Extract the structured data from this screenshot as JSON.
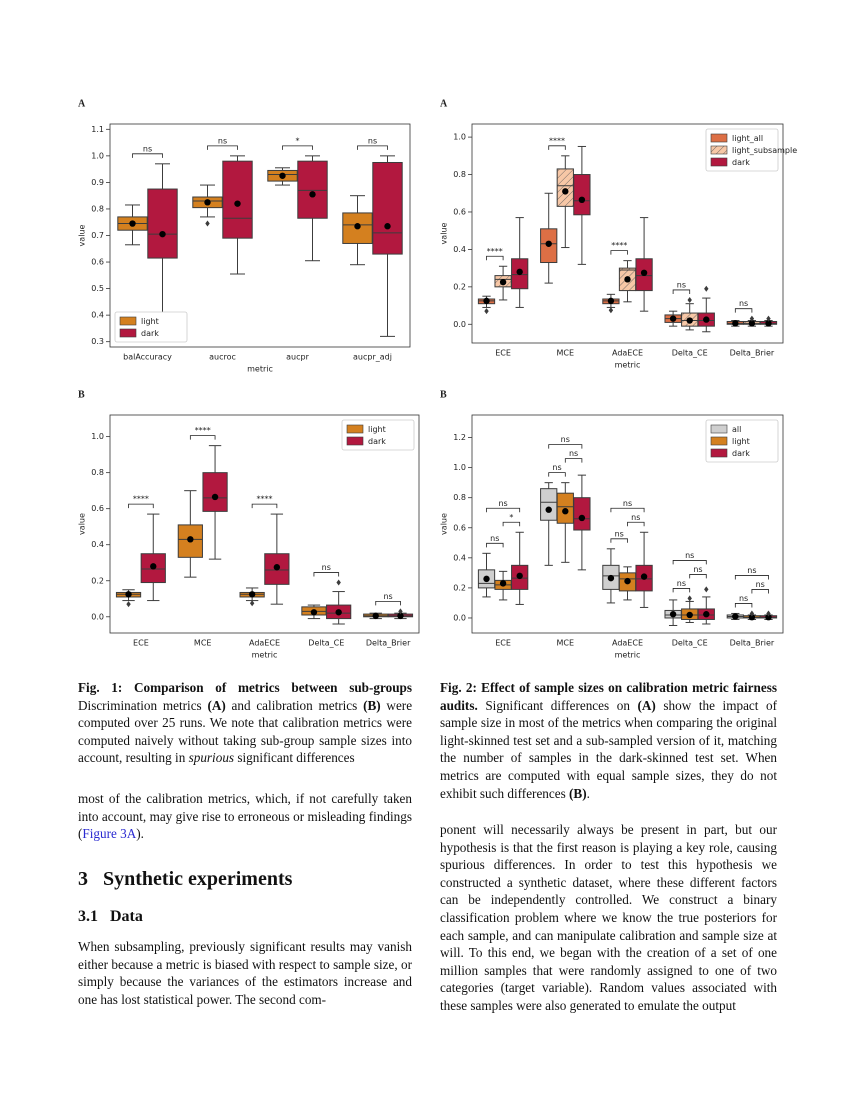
{
  "chart_data": [
    {
      "type": "box",
      "panel": "A",
      "categories": [
        "balAccuracy",
        "aucroc",
        "aucpr",
        "aucpr_adj"
      ],
      "xlabel": "metric",
      "ylabel": "value",
      "ylim": [
        0.28,
        1.12
      ],
      "yticks": [
        0.3,
        0.4,
        0.5,
        0.6,
        0.7,
        0.8,
        0.9,
        {
          "value": 1,
          "label": "1.0"
        },
        1.1
      ],
      "legend": "lower left",
      "series": [
        {
          "name": "light",
          "color": "#d4801f",
          "values": [
            {
              "min": 0.665,
              "q1": 0.72,
              "median": 0.745,
              "q3": 0.77,
              "max": 0.815,
              "mean": 0.745
            },
            {
              "min": 0.77,
              "q1": 0.805,
              "median": 0.83,
              "q3": 0.845,
              "max": 0.89,
              "mean": 0.825,
              "outliers": [
                0.745
              ]
            },
            {
              "min": 0.89,
              "q1": 0.905,
              "median": 0.93,
              "q3": 0.945,
              "max": 0.955,
              "mean": 0.925
            },
            {
              "min": 0.59,
              "q1": 0.67,
              "median": 0.74,
              "q3": 0.785,
              "max": 0.85,
              "mean": 0.735
            }
          ]
        },
        {
          "name": "dark",
          "color": "#b2183f",
          "values": [
            {
              "min": 0.33,
              "q1": 0.615,
              "median": 0.705,
              "q3": 0.875,
              "max": 0.97,
              "mean": 0.705
            },
            {
              "min": 0.555,
              "q1": 0.69,
              "median": 0.765,
              "q3": 0.98,
              "max": 1.0,
              "mean": 0.82
            },
            {
              "min": 0.605,
              "q1": 0.765,
              "median": 0.87,
              "q3": 0.98,
              "max": 1.0,
              "mean": 0.855
            },
            {
              "min": 0.32,
              "q1": 0.63,
              "median": 0.71,
              "q3": 0.975,
              "max": 1.0,
              "mean": 0.735
            }
          ]
        }
      ],
      "annotations": [
        [
          "ns"
        ],
        [
          "ns"
        ],
        [
          "*"
        ],
        [
          "ns"
        ]
      ]
    },
    {
      "type": "box",
      "panel": "A",
      "categories": [
        "ECE",
        "MCE",
        "AdaECE",
        "Delta_CE",
        "Delta_Brier"
      ],
      "xlabel": "metric",
      "ylabel": "value",
      "ylim": [
        -0.1,
        1.07
      ],
      "yticks": [
        {
          "value": 0,
          "label": "0.0"
        },
        0.2,
        0.4,
        0.6,
        0.8,
        {
          "value": 1,
          "label": "1.0"
        }
      ],
      "legend": "upper right",
      "series": [
        {
          "name": "light_all",
          "color": "#dd6f45",
          "values": [
            {
              "min": 0.09,
              "q1": 0.11,
              "median": 0.125,
              "q3": 0.135,
              "max": 0.15,
              "mean": 0.125,
              "outliers": [
                0.07
              ]
            },
            {
              "min": 0.22,
              "q1": 0.33,
              "median": 0.43,
              "q3": 0.51,
              "max": 0.7,
              "mean": 0.43
            },
            {
              "min": 0.09,
              "q1": 0.11,
              "median": 0.125,
              "q3": 0.135,
              "max": 0.16,
              "mean": 0.125,
              "outliers": [
                0.075
              ]
            },
            {
              "min": -0.01,
              "q1": 0.01,
              "median": 0.03,
              "q3": 0.05,
              "max": 0.07,
              "mean": 0.03
            },
            {
              "min": -0.01,
              "q1": 0,
              "median": 0.005,
              "q3": 0.015,
              "max": 0.02,
              "mean": 0.005
            }
          ]
        },
        {
          "name": "light_subsample",
          "color": "#f7c7a6",
          "hatch": "/",
          "values": [
            {
              "min": 0.13,
              "q1": 0.2,
              "median": 0.24,
              "q3": 0.26,
              "max": 0.31,
              "mean": 0.225
            },
            {
              "min": 0.41,
              "q1": 0.63,
              "median": 0.74,
              "q3": 0.83,
              "max": 0.9,
              "mean": 0.71
            },
            {
              "min": 0.12,
              "q1": 0.18,
              "median": 0.29,
              "q3": 0.3,
              "max": 0.34,
              "mean": 0.24
            },
            {
              "min": -0.03,
              "q1": -0.01,
              "median": 0.02,
              "q3": 0.06,
              "max": 0.11,
              "mean": 0.02,
              "outliers": [
                0.13
              ]
            },
            {
              "min": -0.01,
              "q1": 0,
              "median": 0.005,
              "q3": 0.015,
              "max": 0.02,
              "mean": 0.005,
              "outliers": [
                0.03
              ]
            }
          ]
        },
        {
          "name": "dark",
          "color": "#b2183f",
          "values": [
            {
              "min": 0.09,
              "q1": 0.19,
              "median": 0.265,
              "q3": 0.35,
              "max": 0.57,
              "mean": 0.28
            },
            {
              "min": 0.32,
              "q1": 0.585,
              "median": 0.66,
              "q3": 0.8,
              "max": 0.95,
              "mean": 0.665
            },
            {
              "min": 0.07,
              "q1": 0.18,
              "median": 0.26,
              "q3": 0.35,
              "max": 0.57,
              "mean": 0.275
            },
            {
              "min": -0.04,
              "q1": -0.01,
              "median": 0.02,
              "q3": 0.06,
              "max": 0.14,
              "mean": 0.025,
              "outliers": [
                0.19
              ]
            },
            {
              "min": -0.01,
              "q1": 0,
              "median": 0.005,
              "q3": 0.015,
              "max": 0.02,
              "mean": 0.005,
              "outliers": [
                0.03
              ]
            }
          ]
        }
      ],
      "annotations": [
        [
          "****"
        ],
        [
          "****"
        ],
        [
          "****"
        ],
        [
          "ns"
        ],
        [
          "ns"
        ]
      ]
    },
    {
      "type": "box",
      "panel": "B",
      "categories": [
        "ECE",
        "MCE",
        "AdaECE",
        "Delta_CE",
        "Delta_Brier"
      ],
      "xlabel": "metric",
      "ylabel": "value",
      "ylim": [
        -0.09,
        1.12
      ],
      "yticks": [
        {
          "value": 0,
          "label": "0.0"
        },
        0.2,
        0.4,
        0.6,
        0.8,
        {
          "value": 1,
          "label": "1.0"
        }
      ],
      "legend": "upper right",
      "series": [
        {
          "name": "light",
          "color": "#d4801f",
          "values": [
            {
              "min": 0.09,
              "q1": 0.11,
              "median": 0.125,
              "q3": 0.135,
              "max": 0.15,
              "mean": 0.125,
              "outliers": [
                0.07
              ]
            },
            {
              "min": 0.22,
              "q1": 0.33,
              "median": 0.43,
              "q3": 0.51,
              "max": 0.7,
              "mean": 0.43
            },
            {
              "min": 0.09,
              "q1": 0.11,
              "median": 0.125,
              "q3": 0.135,
              "max": 0.16,
              "mean": 0.125,
              "outliers": [
                0.075
              ]
            },
            {
              "min": -0.01,
              "q1": 0.01,
              "median": 0.03,
              "q3": 0.055,
              "max": 0.065,
              "mean": 0.025
            },
            {
              "min": -0.01,
              "q1": 0,
              "median": 0.005,
              "q3": 0.015,
              "max": 0.02,
              "mean": 0.005
            }
          ]
        },
        {
          "name": "dark",
          "color": "#b2183f",
          "values": [
            {
              "min": 0.09,
              "q1": 0.19,
              "median": 0.265,
              "q3": 0.35,
              "max": 0.57,
              "mean": 0.28
            },
            {
              "min": 0.32,
              "q1": 0.585,
              "median": 0.66,
              "q3": 0.8,
              "max": 0.95,
              "mean": 0.665
            },
            {
              "min": 0.07,
              "q1": 0.18,
              "median": 0.26,
              "q3": 0.35,
              "max": 0.57,
              "mean": 0.275
            },
            {
              "min": -0.04,
              "q1": -0.01,
              "median": 0.02,
              "q3": 0.065,
              "max": 0.14,
              "mean": 0.025,
              "outliers": [
                0.19
              ]
            },
            {
              "min": -0.01,
              "q1": 0,
              "median": 0.005,
              "q3": 0.015,
              "max": 0.02,
              "mean": 0.005,
              "outliers": [
                0.03
              ]
            }
          ]
        }
      ],
      "annotations": [
        [
          "****"
        ],
        [
          "****"
        ],
        [
          "****"
        ],
        [
          "ns"
        ],
        [
          "ns"
        ]
      ]
    },
    {
      "type": "box",
      "panel": "B",
      "categories": [
        "ECE",
        "MCE",
        "AdaECE",
        "Delta_CE",
        "Delta_Brier"
      ],
      "xlabel": "metric",
      "ylabel": "value",
      "ylim": [
        -0.1,
        1.35
      ],
      "yticks": [
        {
          "value": 0,
          "label": "0.0"
        },
        0.2,
        0.4,
        0.6,
        0.8,
        {
          "value": 1,
          "label": "1.0"
        },
        1.2
      ],
      "legend": "upper right",
      "series": [
        {
          "name": "all",
          "color": "#cfcfcf",
          "values": [
            {
              "min": 0.14,
              "q1": 0.2,
              "median": 0.23,
              "q3": 0.32,
              "max": 0.43,
              "mean": 0.26
            },
            {
              "min": 0.35,
              "q1": 0.65,
              "median": 0.77,
              "q3": 0.86,
              "max": 0.9,
              "mean": 0.72
            },
            {
              "min": 0.1,
              "q1": 0.19,
              "median": 0.28,
              "q3": 0.35,
              "max": 0.46,
              "mean": 0.265
            },
            {
              "min": -0.05,
              "q1": 0,
              "median": 0.02,
              "q3": 0.05,
              "max": 0.12,
              "mean": 0.025
            },
            {
              "min": -0.01,
              "q1": 0,
              "median": 0.01,
              "q3": 0.02,
              "max": 0.03,
              "mean": 0.01
            }
          ]
        },
        {
          "name": "light",
          "color": "#d4801f",
          "values": [
            {
              "min": 0.12,
              "q1": 0.19,
              "median": 0.22,
              "q3": 0.25,
              "max": 0.31,
              "mean": 0.23
            },
            {
              "min": 0.37,
              "q1": 0.63,
              "median": 0.74,
              "q3": 0.83,
              "max": 0.9,
              "mean": 0.71
            },
            {
              "min": 0.12,
              "q1": 0.18,
              "median": 0.26,
              "q3": 0.3,
              "max": 0.34,
              "mean": 0.245
            },
            {
              "min": -0.03,
              "q1": -0.01,
              "median": 0.02,
              "q3": 0.06,
              "max": 0.11,
              "mean": 0.02,
              "outliers": [
                0.13
              ]
            },
            {
              "min": -0.01,
              "q1": 0,
              "median": 0.005,
              "q3": 0.015,
              "max": 0.02,
              "mean": 0.005,
              "outliers": [
                0.03
              ]
            }
          ]
        },
        {
          "name": "dark",
          "color": "#b2183f",
          "values": [
            {
              "min": 0.09,
              "q1": 0.19,
              "median": 0.265,
              "q3": 0.35,
              "max": 0.57,
              "mean": 0.28
            },
            {
              "min": 0.32,
              "q1": 0.585,
              "median": 0.66,
              "q3": 0.8,
              "max": 0.95,
              "mean": 0.665
            },
            {
              "min": 0.07,
              "q1": 0.18,
              "median": 0.26,
              "q3": 0.35,
              "max": 0.57,
              "mean": 0.275
            },
            {
              "min": -0.04,
              "q1": -0.01,
              "median": 0.02,
              "q3": 0.06,
              "max": 0.14,
              "mean": 0.025,
              "outliers": [
                0.19
              ]
            },
            {
              "min": -0.01,
              "q1": 0,
              "median": 0.005,
              "q3": 0.015,
              "max": 0.02,
              "mean": 0.005,
              "outliers": [
                0.03
              ]
            }
          ]
        }
      ],
      "annotations": [
        [
          "ns",
          "*",
          "ns"
        ],
        [
          "ns",
          "ns",
          "ns"
        ],
        [
          "ns",
          "ns",
          "ns"
        ],
        [
          "ns",
          "ns",
          "ns"
        ],
        [
          "ns",
          "ns",
          "ns"
        ]
      ]
    }
  ],
  "fig1_caption": {
    "label": "Fig. 1:",
    "title": "Comparison of metrics between sub-groups",
    "parts": [
      "Discrimination metrics",
      "(A)",
      "and calibration metrics",
      "(B)",
      "were computed over 25 runs. We note that calibration metrics were computed naively without taking sub-group sample sizes into account, resulting in",
      "spurious",
      "significant differences"
    ]
  },
  "fig2_caption": {
    "label": "Fig. 2:",
    "title": "Effect of sample sizes on calibration metric fairness audits.",
    "parts": [
      "Significant differences on",
      "(A)",
      "show the impact of sample size in most of the metrics when comparing the original light-skinned test set and a sub-sampled version of it, matching the number of samples in the dark-skinned test set. When metrics are computed with equal sample sizes, they do not exhibit such differences",
      "(B)",
      "."
    ]
  },
  "left_paragraph": {
    "parts": [
      "most of the calibration metrics, which, if not carefully taken into account, may give rise to erroneous or misleading findings (",
      "Figure 3A",
      ")."
    ]
  },
  "section": {
    "number": "3",
    "title": "Synthetic experiments"
  },
  "subsection": {
    "number": "3.1",
    "title": "Data"
  },
  "data_paragraph_left": "When subsampling, previously significant results may vanish either because a metric is biased with respect to sample size, or simply because the variances of the estimators increase and one has lost statistical power. The second com-",
  "data_paragraph_right": "ponent will necessarily always be present in part, but our hypothesis is that the first reason is playing a key role, causing spurious differences. In order to test this hypothesis we constructed a synthetic dataset, where these different factors can be independently controlled. We construct a binary classification problem where we know the true posteriors for each sample, and can manipulate calibration and sample size at will. To this end, we began with the creation of a set of one million samples that were randomly assigned to one of two categories (target variable). Random values associated with these samples were also generated to emulate the output"
}
